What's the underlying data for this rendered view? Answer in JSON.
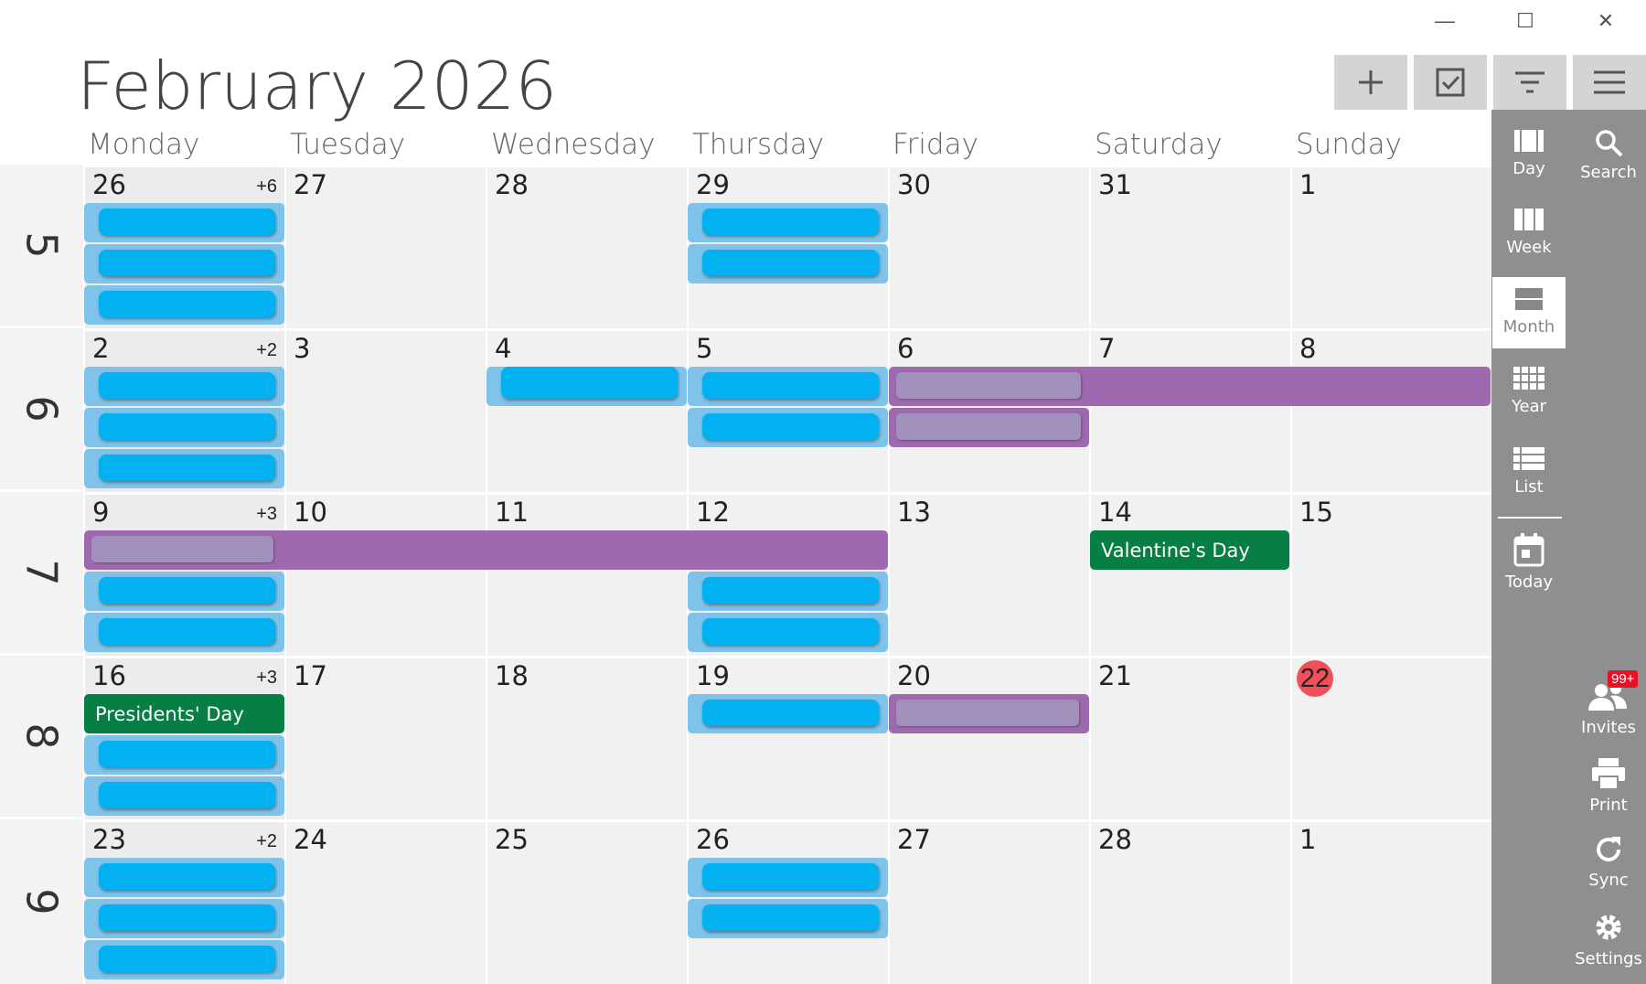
{
  "window": {
    "minimize": "—",
    "maximize": "☐",
    "close": "✕"
  },
  "title": "February 2026",
  "toolbar": {
    "add": "add-icon",
    "tasks": "checkbox-icon",
    "filter": "filter-icon",
    "menu": "hamburger-icon"
  },
  "day_names": [
    "Monday",
    "Tuesday",
    "Wednesday",
    "Thursday",
    "Friday",
    "Saturday",
    "Sunday"
  ],
  "weeks": [
    {
      "number": "5",
      "days": [
        "26",
        "27",
        "28",
        "29",
        "30",
        "31",
        "1"
      ],
      "more": "+6"
    },
    {
      "number": "6",
      "days": [
        "2",
        "3",
        "4",
        "5",
        "6",
        "7",
        "8"
      ],
      "more": "+2"
    },
    {
      "number": "7",
      "days": [
        "9",
        "10",
        "11",
        "12",
        "13",
        "14",
        "15"
      ],
      "more": "+3"
    },
    {
      "number": "8",
      "days": [
        "16",
        "17",
        "18",
        "19",
        "20",
        "21",
        "22"
      ],
      "more": "+3"
    },
    {
      "number": "9",
      "days": [
        "23",
        "24",
        "25",
        "26",
        "27",
        "28",
        "1"
      ],
      "more": "+2"
    }
  ],
  "today": "22",
  "holidays": {
    "valentines": "Valentine's Day",
    "presidents": "Presidents' Day"
  },
  "sidebar": {
    "day": "Day",
    "search": "Search",
    "week": "Week",
    "month": "Month",
    "year": "Year",
    "list": "List",
    "today": "Today",
    "invites": "Invites",
    "invites_badge": "99+",
    "print": "Print",
    "sync": "Sync",
    "settings": "Settings"
  },
  "colors": {
    "event_blue": "#03b0f0",
    "event_purple": "#9e69ae",
    "holiday_green": "#067e44",
    "today_red": "#f0505a",
    "sidebar": "#8f8f8f"
  }
}
